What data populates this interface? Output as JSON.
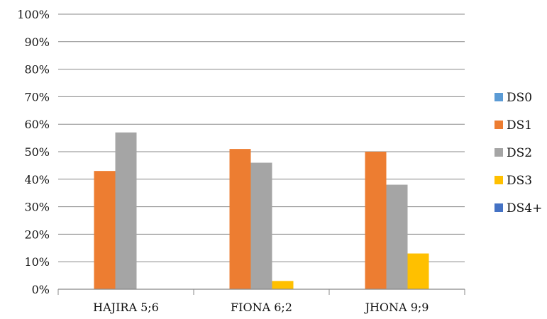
{
  "chart_data": {
    "type": "bar",
    "categories": [
      "HAJIRA 5;6",
      "FIONA 6;2",
      "JHONA 9;9"
    ],
    "series": [
      {
        "name": "DS0",
        "color": "#5b9bd5",
        "values": [
          0,
          0,
          0
        ]
      },
      {
        "name": "DS1",
        "color": "#ed7d31",
        "values": [
          43,
          51,
          50
        ]
      },
      {
        "name": "DS2",
        "color": "#a5a5a5",
        "values": [
          57,
          46,
          38
        ]
      },
      {
        "name": "DS3",
        "color": "#ffc000",
        "values": [
          0,
          3,
          13
        ]
      },
      {
        "name": "DS4+",
        "color": "#4472c4",
        "values": [
          0,
          0,
          0
        ]
      }
    ],
    "ylim": [
      0,
      100
    ],
    "yticks": [
      "0%",
      "10%",
      "20%",
      "30%",
      "40%",
      "50%",
      "60%",
      "70%",
      "80%",
      "90%",
      "100%"
    ],
    "grid": true,
    "legend_position": "right",
    "xlabel": "",
    "ylabel": "",
    "title": ""
  }
}
